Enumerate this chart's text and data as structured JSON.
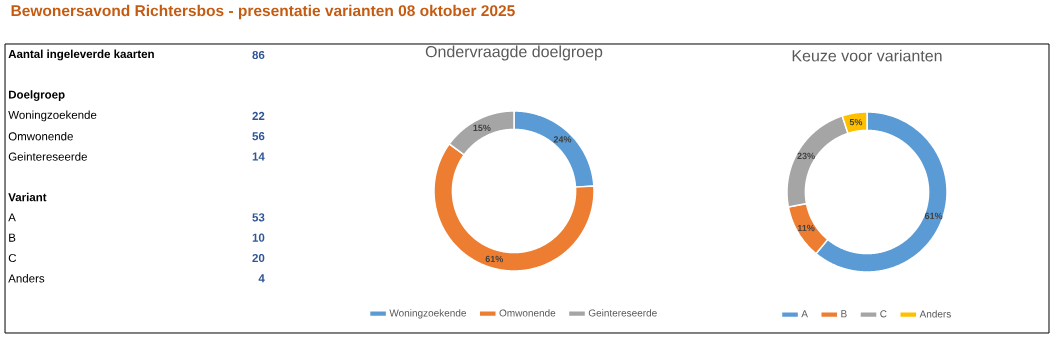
{
  "chart_data": [
    {
      "type": "other",
      "title": "Bewonersavond Richtersbos - presentatie varianten 08 oktober 2025",
      "categories": [
        "Aantal ingeleverde kaarten",
        null,
        "Doelgroep",
        "Woningzoekende",
        "Omwonende",
        "Geintereseerde",
        null,
        "Variant",
        "A",
        "B",
        "C",
        "Anders"
      ],
      "values": [
        86,
        null,
        null,
        22,
        56,
        14,
        null,
        null,
        53,
        10,
        20,
        4
      ],
      "color": "#2f5597",
      "data_labels": true
    },
    {
      "type": "donut",
      "title": "Ondervraagde doelgroep",
      "categories": [
        "Woningzoekende",
        "Omwonende",
        "Geintereseerde"
      ],
      "values": [
        24,
        61,
        15
      ],
      "value_labels": [
        "24%",
        "61%",
        "15%"
      ],
      "colors": [
        "#5b9bd5",
        "#ed7d31",
        "#a5a5a5"
      ],
      "legend": "bottom"
    },
    {
      "type": "donut",
      "title": "Keuze voor varianten",
      "categories": [
        "A",
        "B",
        "C",
        "Anders"
      ],
      "values": [
        61,
        11,
        23,
        5
      ],
      "value_labels": [
        "61%",
        "11%",
        "23%",
        "5%"
      ],
      "colors": [
        "#5b9bd5",
        "#ed7d31",
        "#a5a5a5",
        "#ffc000"
      ],
      "legend": "bottom"
    }
  ]
}
